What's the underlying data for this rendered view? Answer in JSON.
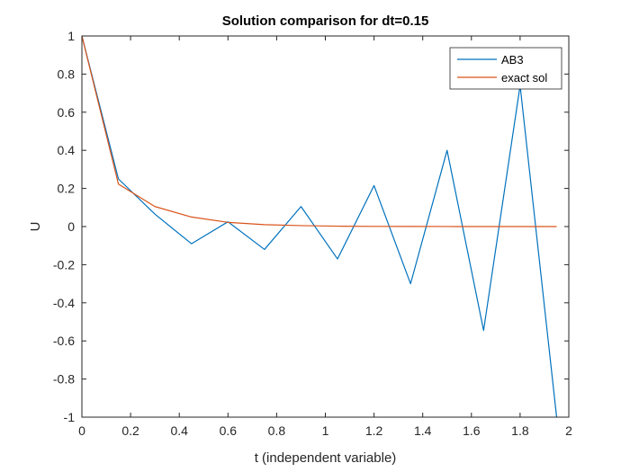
{
  "chart_data": {
    "type": "line",
    "title": "Solution comparison for dt=0.15",
    "xlabel": "t (independent variable)",
    "ylabel": "U",
    "xlim": [
      0,
      2
    ],
    "ylim": [
      -1,
      1
    ],
    "xticks": [
      "0",
      "0.2",
      "0.4",
      "0.6",
      "0.8",
      "1",
      "1.2",
      "1.4",
      "1.6",
      "1.8",
      "2"
    ],
    "yticks": [
      "-1",
      "-0.8",
      "-0.6",
      "-0.4",
      "-0.2",
      "0",
      "0.2",
      "0.4",
      "0.6",
      "0.8",
      "1"
    ],
    "legend_position": "top-right",
    "grid": false,
    "series": [
      {
        "name": "AB3",
        "color": "#0072BD",
        "x": [
          0,
          0.15,
          0.3,
          0.45,
          0.6,
          0.75,
          0.9,
          1.05,
          1.2,
          1.35,
          1.5,
          1.65,
          1.8,
          1.95
        ],
        "y": [
          1,
          0.25,
          0.065,
          -0.09,
          0.025,
          -0.12,
          0.105,
          -0.17,
          0.215,
          -0.3,
          0.4,
          -0.545,
          0.74,
          -1.0
        ]
      },
      {
        "name": "exact sol",
        "color": "#D95319",
        "x": [
          0,
          0.15,
          0.3,
          0.45,
          0.6,
          0.75,
          0.9,
          1.05,
          1.2,
          1.35,
          1.5,
          1.65,
          1.8,
          1.95
        ],
        "y": [
          1,
          0.223,
          0.105,
          0.05,
          0.022,
          0.01,
          0.005,
          0.002,
          0.001,
          0.0005,
          0.0002,
          0.0001,
          5e-05,
          2e-05
        ]
      }
    ]
  }
}
